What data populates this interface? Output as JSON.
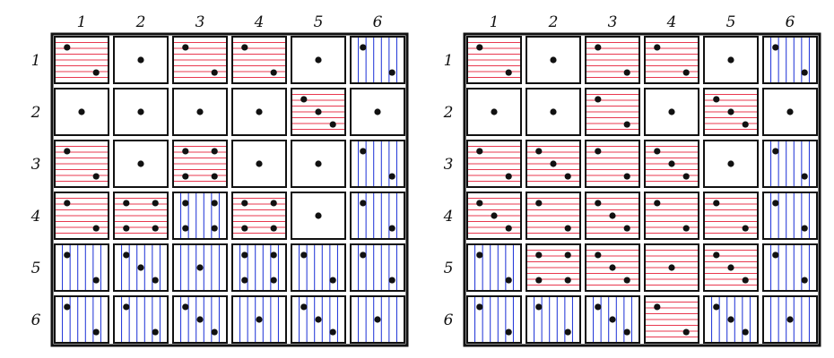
{
  "colors": {
    "horizontal_hatch": "#e8384f",
    "vertical_hatch": "#1a2fd6",
    "grid_line": "#111111",
    "dot": "#111111",
    "background": "#ffffff"
  },
  "legend_codes": {
    "H": "horizontal red hatching",
    "V": "vertical blue hatching",
    "W": "white (no hatching)",
    "dots": "die face value 1-6"
  },
  "grids": [
    {
      "column_labels": [
        "1",
        "2",
        "3",
        "4",
        "5",
        "6"
      ],
      "row_labels": [
        "1",
        "2",
        "3",
        "4",
        "5",
        "6"
      ],
      "cells": [
        [
          {
            "fill": "H",
            "dots": 2
          },
          {
            "fill": "W",
            "dots": 1
          },
          {
            "fill": "H",
            "dots": 2
          },
          {
            "fill": "H",
            "dots": 2
          },
          {
            "fill": "W",
            "dots": 1
          },
          {
            "fill": "V",
            "dots": 2
          }
        ],
        [
          {
            "fill": "W",
            "dots": 1
          },
          {
            "fill": "W",
            "dots": 1
          },
          {
            "fill": "W",
            "dots": 1
          },
          {
            "fill": "W",
            "dots": 1
          },
          {
            "fill": "H",
            "dots": 3
          },
          {
            "fill": "W",
            "dots": 1
          }
        ],
        [
          {
            "fill": "H",
            "dots": 2
          },
          {
            "fill": "W",
            "dots": 1
          },
          {
            "fill": "H",
            "dots": 4
          },
          {
            "fill": "W",
            "dots": 1
          },
          {
            "fill": "W",
            "dots": 1
          },
          {
            "fill": "V",
            "dots": 2
          }
        ],
        [
          {
            "fill": "H",
            "dots": 2
          },
          {
            "fill": "H",
            "dots": 4
          },
          {
            "fill": "V",
            "dots": 4
          },
          {
            "fill": "H",
            "dots": 4
          },
          {
            "fill": "W",
            "dots": 1
          },
          {
            "fill": "V",
            "dots": 2
          }
        ],
        [
          {
            "fill": "V",
            "dots": 2
          },
          {
            "fill": "V",
            "dots": 3
          },
          {
            "fill": "V",
            "dots": 1
          },
          {
            "fill": "V",
            "dots": 4
          },
          {
            "fill": "V",
            "dots": 2
          },
          {
            "fill": "V",
            "dots": 2
          }
        ],
        [
          {
            "fill": "V",
            "dots": 2
          },
          {
            "fill": "V",
            "dots": 2
          },
          {
            "fill": "V",
            "dots": 3
          },
          {
            "fill": "V",
            "dots": 1
          },
          {
            "fill": "V",
            "dots": 3
          },
          {
            "fill": "V",
            "dots": 1
          }
        ]
      ]
    },
    {
      "column_labels": [
        "1",
        "2",
        "3",
        "4",
        "5",
        "6"
      ],
      "row_labels": [
        "1",
        "2",
        "3",
        "4",
        "5",
        "6"
      ],
      "cells": [
        [
          {
            "fill": "H",
            "dots": 2
          },
          {
            "fill": "W",
            "dots": 1
          },
          {
            "fill": "H",
            "dots": 2
          },
          {
            "fill": "H",
            "dots": 2
          },
          {
            "fill": "W",
            "dots": 1
          },
          {
            "fill": "V",
            "dots": 2
          }
        ],
        [
          {
            "fill": "W",
            "dots": 1
          },
          {
            "fill": "W",
            "dots": 1
          },
          {
            "fill": "H",
            "dots": 2
          },
          {
            "fill": "W",
            "dots": 1
          },
          {
            "fill": "H",
            "dots": 3
          },
          {
            "fill": "W",
            "dots": 1
          }
        ],
        [
          {
            "fill": "H",
            "dots": 2
          },
          {
            "fill": "H",
            "dots": 3
          },
          {
            "fill": "H",
            "dots": 2
          },
          {
            "fill": "H",
            "dots": 3
          },
          {
            "fill": "W",
            "dots": 1
          },
          {
            "fill": "V",
            "dots": 2
          }
        ],
        [
          {
            "fill": "H",
            "dots": 3
          },
          {
            "fill": "H",
            "dots": 2
          },
          {
            "fill": "H",
            "dots": 3
          },
          {
            "fill": "H",
            "dots": 2
          },
          {
            "fill": "H",
            "dots": 2
          },
          {
            "fill": "V",
            "dots": 2
          }
        ],
        [
          {
            "fill": "V",
            "dots": 2
          },
          {
            "fill": "H",
            "dots": 4
          },
          {
            "fill": "H",
            "dots": 3
          },
          {
            "fill": "H",
            "dots": 1
          },
          {
            "fill": "H",
            "dots": 3
          },
          {
            "fill": "V",
            "dots": 2
          }
        ],
        [
          {
            "fill": "V",
            "dots": 2
          },
          {
            "fill": "V",
            "dots": 2
          },
          {
            "fill": "V",
            "dots": 3
          },
          {
            "fill": "H",
            "dots": 2
          },
          {
            "fill": "V",
            "dots": 3
          },
          {
            "fill": "V",
            "dots": 1
          }
        ]
      ]
    }
  ]
}
